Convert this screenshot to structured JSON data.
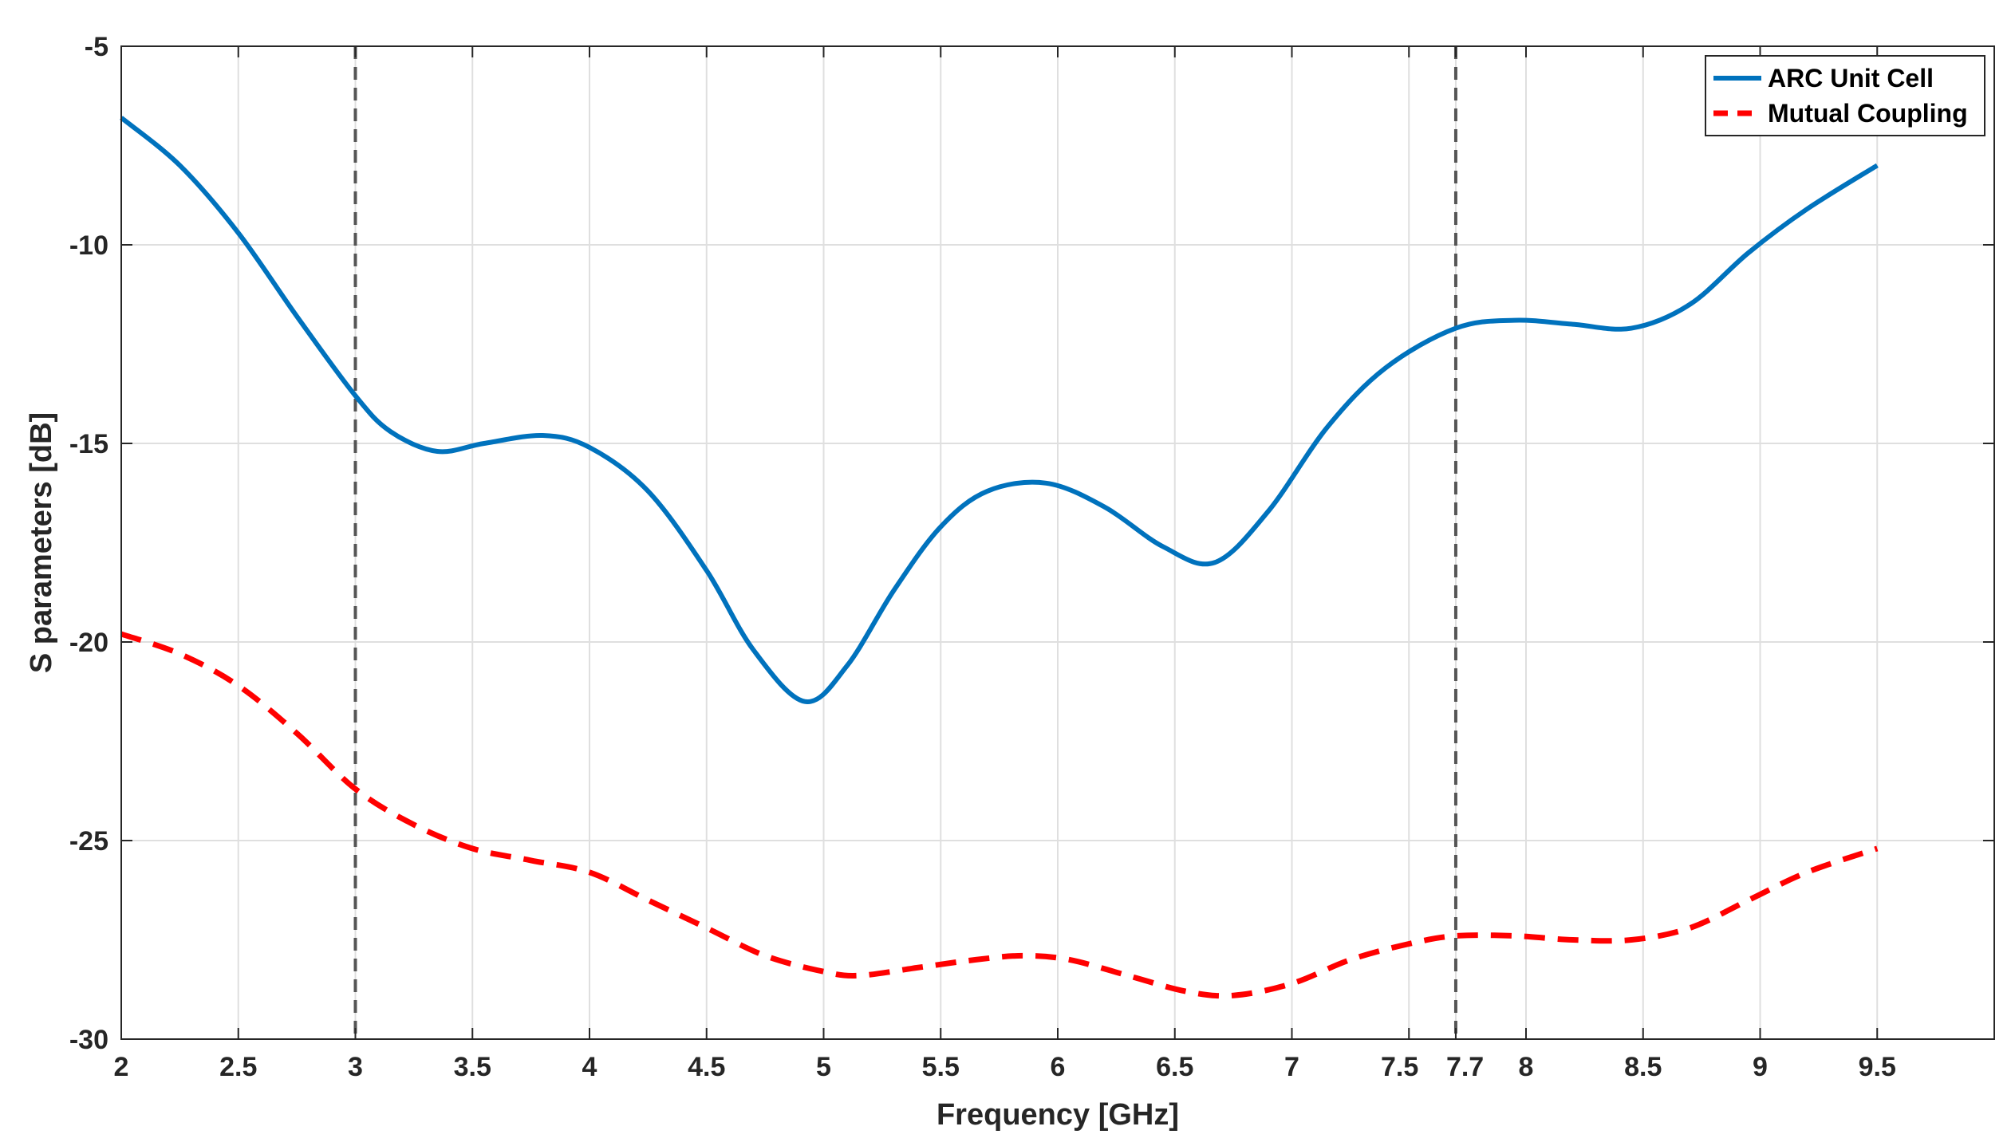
{
  "chart_data": {
    "type": "line",
    "title": "",
    "xlabel": "Frequency [GHz]",
    "ylabel": "S parameters [dB]",
    "xlim": [
      2,
      10
    ],
    "ylim": [
      -30,
      -5
    ],
    "xticks": [
      2,
      2.5,
      3,
      3.5,
      4,
      4.5,
      5,
      5.5,
      6,
      6.5,
      7,
      7.5,
      7.7,
      8,
      8.5,
      9,
      9.5
    ],
    "xtick_labels": [
      "2",
      "2.5",
      "3",
      "3.5",
      "4",
      "4.5",
      "5",
      "5.5",
      "6",
      "6.5",
      "7",
      "7.5",
      "7.7",
      "8",
      "8.5",
      "9",
      "9.5"
    ],
    "yticks": [
      -5,
      -10,
      -15,
      -20,
      -25,
      -30
    ],
    "ytick_labels": [
      "-5",
      "-10",
      "-15",
      "-20",
      "-25",
      "-30"
    ],
    "grid": true,
    "legend": "top-right",
    "vertical_reference_lines": [
      3,
      7.7
    ],
    "series": [
      {
        "name": "ARC Unit Cell",
        "color": "#0072BD",
        "style": "solid",
        "x": [
          2,
          2.25,
          2.5,
          2.75,
          3,
          3.15,
          3.35,
          3.55,
          3.8,
          4.0,
          4.25,
          4.5,
          4.7,
          4.92,
          5.1,
          5.3,
          5.5,
          5.7,
          5.95,
          6.2,
          6.45,
          6.67,
          6.9,
          7.15,
          7.4,
          7.7,
          7.95,
          8.2,
          8.45,
          8.7,
          8.95,
          9.2,
          9.5
        ],
        "y": [
          -6.8,
          -8.0,
          -9.7,
          -11.8,
          -13.8,
          -14.7,
          -15.2,
          -15.0,
          -14.8,
          -15.1,
          -16.2,
          -18.2,
          -20.2,
          -21.5,
          -20.6,
          -18.7,
          -17.1,
          -16.2,
          -16.0,
          -16.6,
          -17.6,
          -18.0,
          -16.7,
          -14.6,
          -13.1,
          -12.1,
          -11.9,
          -12.0,
          -12.1,
          -11.5,
          -10.2,
          -9.1,
          -8.0
        ]
      },
      {
        "name": "Mutual Coupling",
        "color": "#FF0000",
        "style": "dashed",
        "x": [
          2,
          2.25,
          2.5,
          2.75,
          3,
          3.25,
          3.5,
          3.75,
          4.0,
          4.25,
          4.5,
          4.75,
          5.0,
          5.15,
          5.4,
          5.65,
          5.85,
          6.05,
          6.3,
          6.55,
          6.75,
          7.0,
          7.25,
          7.5,
          7.7,
          7.95,
          8.2,
          8.45,
          8.7,
          8.95,
          9.2,
          9.5
        ],
        "y": [
          -19.8,
          -20.3,
          -21.1,
          -22.3,
          -23.7,
          -24.6,
          -25.2,
          -25.5,
          -25.8,
          -26.5,
          -27.2,
          -27.9,
          -28.3,
          -28.4,
          -28.2,
          -28.0,
          -27.9,
          -28.0,
          -28.4,
          -28.8,
          -28.9,
          -28.6,
          -28.0,
          -27.6,
          -27.4,
          -27.4,
          -27.5,
          -27.5,
          -27.2,
          -26.5,
          -25.8,
          -25.2
        ]
      }
    ]
  }
}
